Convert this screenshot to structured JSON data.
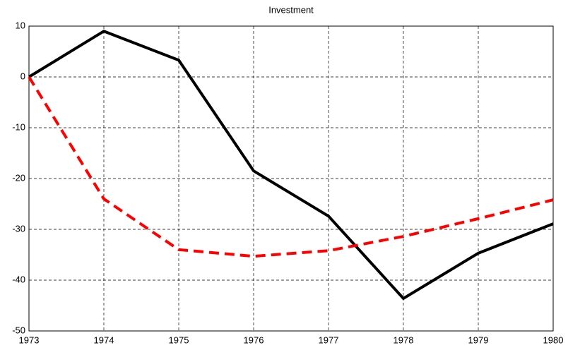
{
  "chart_data": {
    "type": "line",
    "title": "Investment",
    "x": [
      1973,
      1974,
      1975,
      1976,
      1977,
      1978,
      1979,
      1980
    ],
    "series": [
      {
        "color": "#000000",
        "linestyle": "solid",
        "values": [
          0,
          9.0,
          3.3,
          -18.5,
          -27.4,
          -43.6,
          -34.7,
          -28.9
        ]
      },
      {
        "color": "#ff0000",
        "linestyle": "dashed",
        "values": [
          0,
          -24.0,
          -34.0,
          -35.3,
          -34.2,
          -31.4,
          -27.9,
          -24.2
        ]
      }
    ],
    "xlim": [
      1973,
      1980
    ],
    "xticks": [
      1973,
      1974,
      1975,
      1976,
      1977,
      1978,
      1979,
      1980
    ],
    "ylim": [
      -50,
      10
    ],
    "yticks": [
      -50,
      -40,
      -30,
      -20,
      -10,
      0,
      10
    ],
    "grid": true
  }
}
